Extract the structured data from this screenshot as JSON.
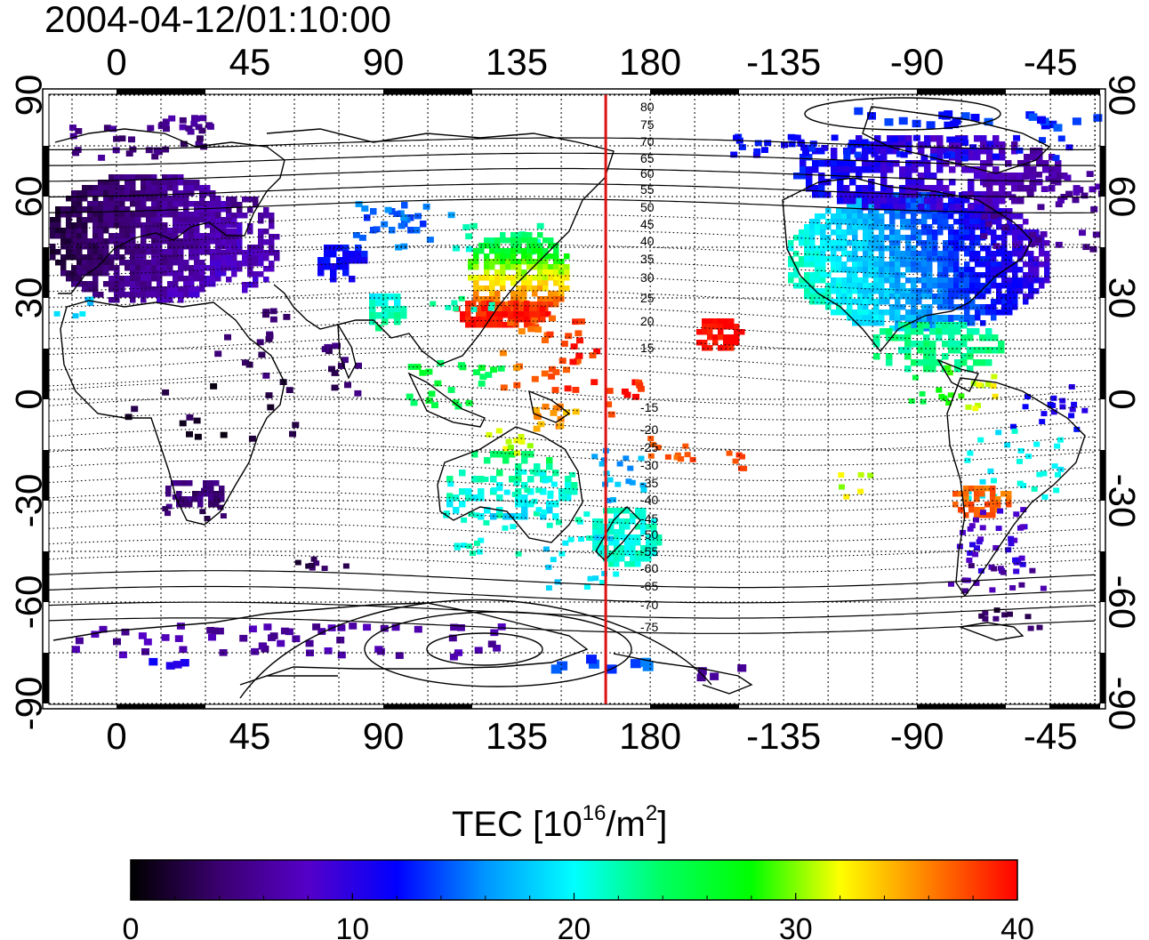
{
  "timestamp": "2004-04-12/01:10:00",
  "axes": {
    "lon_ticks": [
      "0",
      "45",
      "90",
      "135",
      "180",
      "-135",
      "-90",
      "-45"
    ],
    "lat_ticks": [
      "90",
      "60",
      "30",
      "0",
      "-30",
      "-60",
      "-90"
    ]
  },
  "contour_labels": [
    "80",
    "75",
    "70",
    "65",
    "60",
    "55",
    "50",
    "45",
    "40",
    "35",
    "30",
    "25",
    "20",
    "15",
    "-15",
    "-20",
    "-25",
    "-30",
    "-35",
    "-40",
    "-45",
    "-50",
    "-55",
    "-60",
    "-65",
    "-70",
    "-75"
  ],
  "terminator_longitude": 165,
  "colorbar": {
    "title_prefix": "TEC  [10",
    "title_exp1": "16",
    "title_mid": "/m",
    "title_exp2": "2",
    "title_suffix": "]",
    "min": 0,
    "max": 40,
    "tick_labels": [
      "0",
      "10",
      "20",
      "30",
      "40"
    ],
    "colors": [
      "#000000",
      "#3b0070",
      "#5500c8",
      "#0000ff",
      "#0096ff",
      "#00ffff",
      "#00ff60",
      "#00ff00",
      "#ffff00",
      "#ff8000",
      "#ff0000"
    ]
  },
  "colors": {
    "terminator": "#dd1111",
    "frame": "#000000"
  }
}
